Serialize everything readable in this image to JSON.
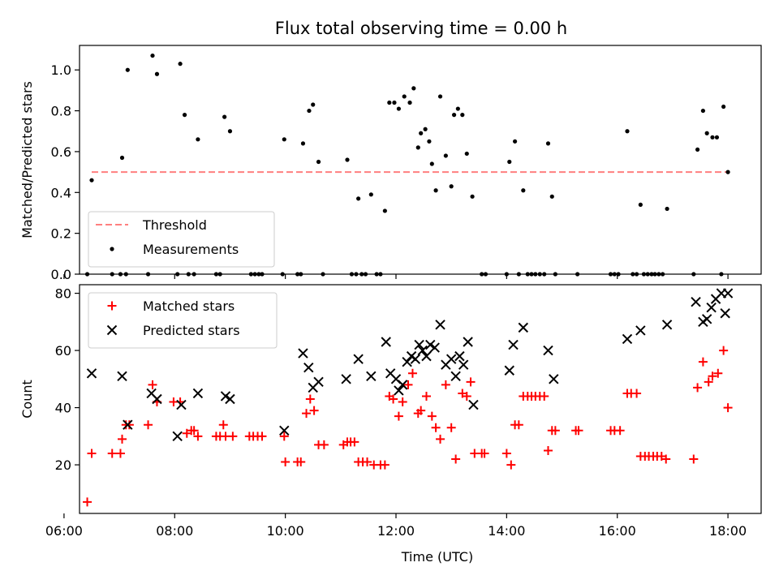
{
  "title": "Flux total observing time = 0.00 h",
  "chart_data": [
    {
      "type": "scatter",
      "ylabel": "Matched/Predicted stars",
      "xlabel": "",
      "xlim": [
        6.28,
        18.6
      ],
      "ylim": [
        0,
        1.12
      ],
      "xticks": [
        "06:00",
        "08:00",
        "10:00",
        "12:00",
        "14:00",
        "16:00",
        "18:00"
      ],
      "xticks_hours": [
        6,
        8,
        10,
        12,
        14,
        16,
        18
      ],
      "xticklabels_visible": false,
      "yticks": [
        0.0,
        0.2,
        0.4,
        0.6,
        0.8,
        1.0
      ],
      "legend_position": "lower left",
      "threshold": {
        "name": "Threshold",
        "value": 0.5,
        "x_range": [
          6.5,
          18.0
        ],
        "color": "#ff7f7f",
        "style": "dashed"
      },
      "series": [
        {
          "name": "Measurements",
          "color": "#000000",
          "marker": "dot",
          "x": [
            6.5,
            7.05,
            7.15,
            7.6,
            7.68,
            8.1,
            8.18,
            8.42,
            8.9,
            9.0,
            9.98,
            10.32,
            10.43,
            10.5,
            10.6,
            11.12,
            11.32,
            11.55,
            11.8,
            11.88,
            11.97,
            12.05,
            12.15,
            12.25,
            12.32,
            12.4,
            12.45,
            12.53,
            12.6,
            12.65,
            12.72,
            12.8,
            12.9,
            13.0,
            13.05,
            13.12,
            13.2,
            13.28,
            13.38,
            14.05,
            14.15,
            14.3,
            14.75,
            14.82,
            16.18,
            16.42,
            16.9,
            17.45,
            17.55,
            17.62,
            17.72,
            17.8,
            17.92,
            18.0
          ],
          "y": [
            0.46,
            0.57,
            1.0,
            1.07,
            0.98,
            1.03,
            0.78,
            0.66,
            0.77,
            0.7,
            0.66,
            0.64,
            0.8,
            0.83,
            0.55,
            0.56,
            0.37,
            0.39,
            0.31,
            0.84,
            0.84,
            0.81,
            0.87,
            0.84,
            0.91,
            0.62,
            0.69,
            0.71,
            0.65,
            0.54,
            0.41,
            0.87,
            0.58,
            0.43,
            0.78,
            0.81,
            0.78,
            0.59,
            0.38,
            0.55,
            0.65,
            0.41,
            0.64,
            0.38,
            0.7,
            0.34,
            0.32,
            0.61,
            0.8,
            0.69,
            0.67,
            0.67,
            0.82,
            0.5
          ]
        },
        {
          "name": "",
          "color": "#000000",
          "marker": "dot",
          "x": [
            6.42,
            6.87,
            7.02,
            7.12,
            7.52,
            8.05,
            8.25,
            8.35,
            8.75,
            8.82,
            9.38,
            9.45,
            9.52,
            9.58,
            9.95,
            10.22,
            10.28,
            10.68,
            11.2,
            11.28,
            11.38,
            11.45,
            11.65,
            11.72,
            13.55,
            13.62,
            14.0,
            14.22,
            14.38,
            14.45,
            14.52,
            14.6,
            14.68,
            14.88,
            15.28,
            15.88,
            15.95,
            16.02,
            16.28,
            16.35,
            16.48,
            16.55,
            16.62,
            16.68,
            16.75,
            16.82,
            17.38,
            17.88
          ]
        }
      ]
    },
    {
      "type": "scatter",
      "ylabel": "Count",
      "xlabel": "Time (UTC)",
      "xlim": [
        6.28,
        18.6
      ],
      "ylim": [
        3,
        83
      ],
      "xticks": [
        "06:00",
        "08:00",
        "10:00",
        "12:00",
        "14:00",
        "16:00",
        "18:00"
      ],
      "xticks_hours": [
        6,
        8,
        10,
        12,
        14,
        16,
        18
      ],
      "yticks": [
        20,
        40,
        60,
        80
      ],
      "legend_position": "upper left",
      "series": [
        {
          "name": "Matched stars",
          "color": "#ff0000",
          "marker": "plus",
          "x": [
            6.42,
            6.5,
            6.87,
            7.02,
            7.05,
            7.12,
            7.18,
            7.52,
            7.6,
            7.68,
            7.98,
            8.1,
            8.22,
            8.3,
            8.35,
            8.42,
            8.75,
            8.82,
            8.88,
            8.92,
            9.05,
            9.35,
            9.42,
            9.5,
            9.58,
            9.98,
            10.0,
            10.22,
            10.28,
            10.38,
            10.45,
            10.52,
            10.6,
            10.7,
            11.05,
            11.12,
            11.18,
            11.25,
            11.32,
            11.4,
            11.48,
            11.6,
            11.72,
            11.8,
            11.88,
            11.95,
            12.05,
            12.12,
            12.22,
            12.3,
            12.4,
            12.45,
            12.55,
            12.65,
            12.72,
            12.8,
            12.9,
            13.0,
            13.08,
            13.2,
            13.28,
            13.35,
            13.42,
            13.55,
            13.6,
            14.0,
            14.08,
            14.15,
            14.22,
            14.3,
            14.38,
            14.45,
            14.52,
            14.6,
            14.68,
            14.75,
            14.82,
            14.88,
            15.25,
            15.3,
            15.88,
            15.95,
            16.05,
            16.18,
            16.25,
            16.35,
            16.42,
            16.5,
            16.57,
            16.65,
            16.72,
            16.8,
            16.88,
            17.38,
            17.45,
            17.55,
            17.65,
            17.72,
            17.82,
            17.92,
            18.0
          ],
          "y": [
            7,
            24,
            24,
            24,
            29,
            34,
            34,
            34,
            48,
            42,
            42,
            42,
            31,
            32,
            32,
            30,
            30,
            30,
            34,
            30,
            30,
            30,
            30,
            30,
            30,
            30,
            21,
            21,
            21,
            38,
            43,
            39,
            27,
            27,
            27,
            28,
            28,
            28,
            21,
            21,
            21,
            20,
            20,
            20,
            44,
            43,
            37,
            42,
            48,
            52,
            38,
            39,
            44,
            37,
            33,
            29,
            48,
            33,
            22,
            45,
            44,
            49,
            24,
            24,
            24,
            24,
            20,
            34,
            34,
            44,
            44,
            44,
            44,
            44,
            44,
            25,
            32,
            32,
            32,
            32,
            32,
            32,
            32,
            45,
            45,
            45,
            23,
            23,
            23,
            23,
            23,
            23,
            22,
            22,
            47,
            56,
            49,
            51,
            52,
            60,
            40
          ]
        },
        {
          "name": "Predicted stars",
          "color": "#000000",
          "marker": "x",
          "x": [
            6.5,
            7.05,
            7.15,
            7.58,
            7.68,
            8.05,
            8.12,
            8.42,
            8.92,
            9.0,
            9.98,
            10.32,
            10.42,
            10.5,
            10.6,
            11.1,
            11.32,
            11.55,
            11.82,
            11.9,
            12.0,
            12.05,
            12.12,
            12.2,
            12.28,
            12.35,
            12.42,
            12.48,
            12.55,
            12.62,
            12.7,
            12.8,
            12.9,
            13.0,
            13.08,
            13.15,
            13.22,
            13.3,
            13.4,
            14.05,
            14.12,
            14.3,
            14.75,
            14.85,
            16.18,
            16.42,
            16.9,
            17.42,
            17.55,
            17.62,
            17.7,
            17.78,
            17.88,
            17.95,
            18.0
          ],
          "y": [
            52,
            51,
            34,
            45,
            43,
            30,
            41,
            45,
            44,
            43,
            32,
            59,
            54,
            47,
            49,
            50,
            57,
            51,
            63,
            52,
            50,
            46,
            48,
            56,
            58,
            57,
            62,
            60,
            58,
            62,
            61,
            69,
            55,
            57,
            51,
            58,
            55,
            63,
            41,
            53,
            62,
            68,
            60,
            50,
            64,
            67,
            69,
            77,
            70,
            71,
            75,
            78,
            80,
            73,
            80
          ]
        }
      ]
    }
  ]
}
